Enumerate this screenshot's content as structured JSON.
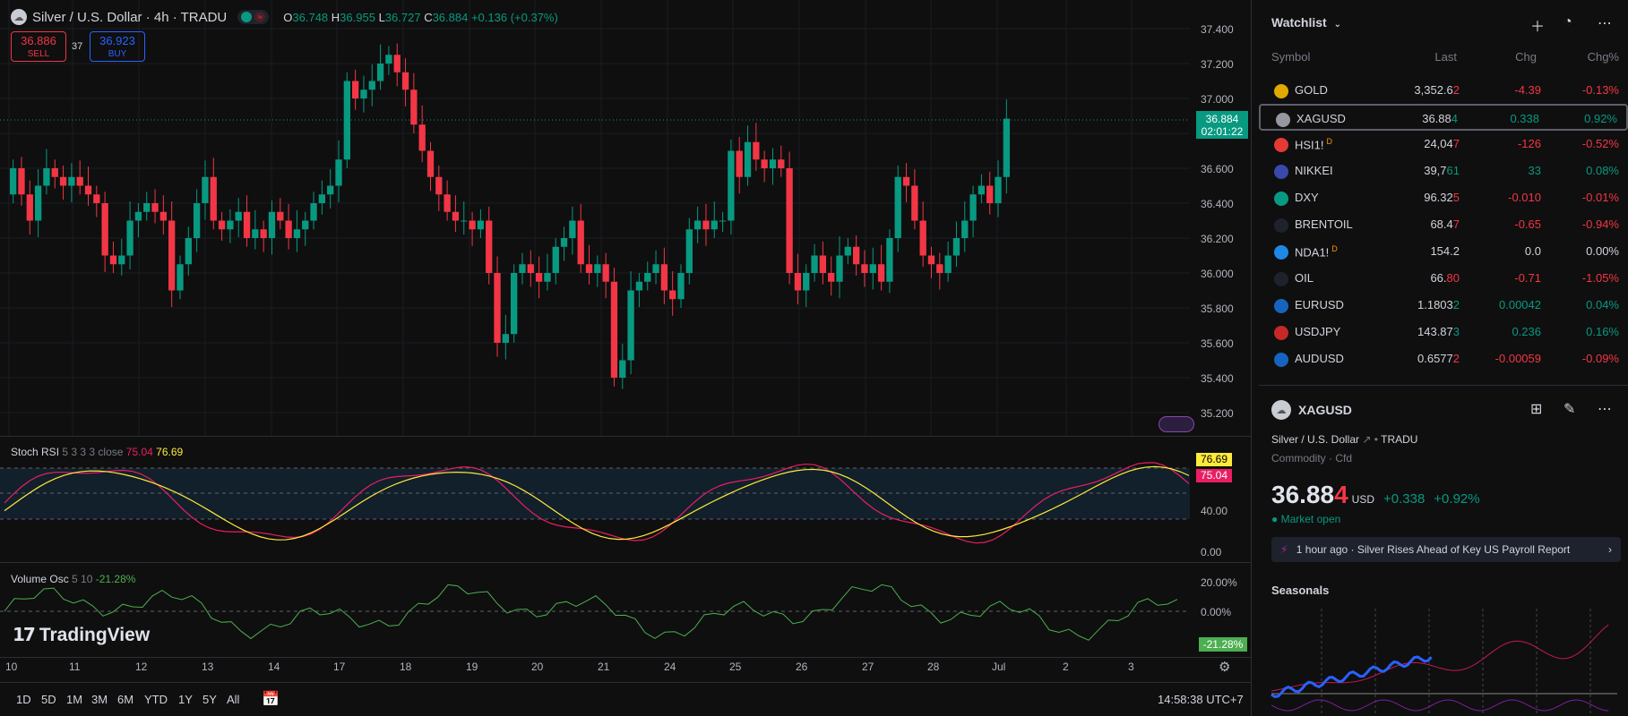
{
  "symbol": {
    "title": "Silver / U.S. Dollar · 4h · TRADU",
    "open_label": "O",
    "open": "36.748",
    "high_label": "H",
    "high": "36.955",
    "low_label": "L",
    "low": "36.727",
    "close_label": "C",
    "close": "36.884",
    "change": "+0.136 (+0.37%)"
  },
  "trade": {
    "sell_price": "36.886",
    "sell_label": "SELL",
    "spread": "37",
    "buy_price": "36.923",
    "buy_label": "BUY"
  },
  "price_axis": [
    "37.400",
    "37.200",
    "37.000",
    "36.600",
    "36.400",
    "36.200",
    "36.000",
    "35.800",
    "35.600",
    "35.400",
    "35.200"
  ],
  "last_price_tag": {
    "price": "36.884",
    "countdown": "02:01:22"
  },
  "stoch_rsi": {
    "name": "Stoch RSI",
    "params": "5 3 3 3 close",
    "k": "75.04",
    "d": "76.69",
    "axis": [
      "40.00",
      "0.00"
    ]
  },
  "volume_osc": {
    "name": "Volume Osc",
    "params": "5 10",
    "value": "-21.28%",
    "axis": [
      "20.00%",
      "0.00%"
    ]
  },
  "x_axis": [
    "10",
    "11",
    "12",
    "13",
    "14",
    "17",
    "18",
    "19",
    "20",
    "21",
    "24",
    "25",
    "26",
    "27",
    "28",
    "Jul",
    "2",
    "3"
  ],
  "timeframes": [
    "1D",
    "5D",
    "1M",
    "3M",
    "6M",
    "YTD",
    "1Y",
    "5Y",
    "All"
  ],
  "clock": "14:58:38 UTC+7",
  "brand": "TradingView",
  "watchlist": {
    "title": "Watchlist",
    "columns": {
      "symbol": "Symbol",
      "last": "Last",
      "chg": "Chg",
      "chgp": "Chg%"
    },
    "rows": [
      {
        "symbol": "GOLD",
        "last": "3,352.6",
        "last_tail": "2",
        "chg": "-4.39",
        "chgp": "-0.13%",
        "dir": "neg",
        "icon_color": "#e0a800",
        "icon": "gold-icon"
      },
      {
        "symbol": "XAGUSD",
        "last": "36.88",
        "last_tail": "4",
        "chg": "0.338",
        "chgp": "0.92%",
        "dir": "pos",
        "icon_color": "#9598a1",
        "icon": "silver-icon"
      },
      {
        "symbol": "HSI1!",
        "sup": "D",
        "last": "24,04",
        "last_tail": "7",
        "chg": "-126",
        "chgp": "-0.52%",
        "dir": "neg",
        "icon_color": "#e53935",
        "icon": "hsi-icon"
      },
      {
        "symbol": "NIKKEI",
        "last": "39,7",
        "last_tail": "61",
        "chg": "33",
        "chgp": "0.08%",
        "dir": "pos",
        "icon_color": "#3949ab",
        "icon": "nikkei-icon"
      },
      {
        "symbol": "DXY",
        "last": "96.32",
        "last_tail": "5",
        "chg": "-0.010",
        "chgp": "-0.01%",
        "dir": "neg",
        "icon_color": "#089981",
        "icon": "dollar-icon"
      },
      {
        "symbol": "BRENTOIL",
        "last": "68.4",
        "last_tail": "7",
        "chg": "-0.65",
        "chgp": "-0.94%",
        "dir": "neg",
        "icon_color": "#1e222d",
        "icon": "oil-drop-icon"
      },
      {
        "symbol": "NDA1!",
        "sup": "D",
        "last": "154.2",
        "last_tail": "",
        "chg": "0.0",
        "chgp": "0.00%",
        "dir": "neu",
        "icon_color": "#1e88e5",
        "icon": "nasdaq-icon"
      },
      {
        "symbol": "OIL",
        "last": "66.",
        "last_tail": "80",
        "chg": "-0.71",
        "chgp": "-1.05%",
        "dir": "neg",
        "icon_color": "#1e222d",
        "icon": "oil-drop-icon"
      },
      {
        "symbol": "EURUSD",
        "last": "1.1803",
        "last_tail": "2",
        "chg": "0.00042",
        "chgp": "0.04%",
        "dir": "pos",
        "icon_color": "#1565c0",
        "icon": "eu-flag-icon"
      },
      {
        "symbol": "USDJPY",
        "last": "143.87",
        "last_tail": "3",
        "chg": "0.236",
        "chgp": "0.16%",
        "dir": "pos",
        "icon_color": "#c62828",
        "icon": "us-flag-icon"
      },
      {
        "symbol": "AUDUSD",
        "last": "0.6577",
        "last_tail": "2",
        "chg": "-0.00059",
        "chgp": "-0.09%",
        "dir": "neg",
        "icon_color": "#1565c0",
        "icon": "au-flag-icon"
      }
    ]
  },
  "detail": {
    "symbol": "XAGUSD",
    "name": "Silver / U.S. Dollar",
    "exchange": "TRADU",
    "category": "Commodity · Cfd",
    "price": "36.88",
    "price_tail": "4",
    "currency": "USD",
    "change": "+0.338",
    "change_pct": "+0.92%",
    "market_status": "Market open",
    "news": "1 hour ago · Silver Rises Ahead of Key US Payroll Report",
    "seasonals_title": "Seasonals"
  },
  "colors": {
    "up": "#089981",
    "down": "#f23645",
    "accent": "#2962ff",
    "bg": "#0f0f0f"
  }
}
